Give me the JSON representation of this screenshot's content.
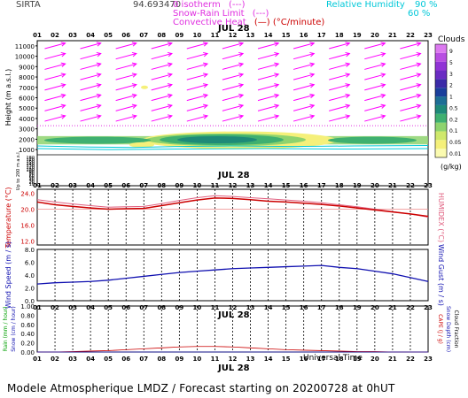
{
  "header": {
    "station": "SIRTA",
    "coord": "94.693470",
    "legend_left": [
      {
        "label": "0 isotherm",
        "marker": "(---)",
        "color": "#e030e0"
      },
      {
        "label": "Snow-Rain Limit",
        "marker": "(---)",
        "color": "#e030e0"
      },
      {
        "label": "Convective Heat",
        "marker": "(—) (°C/minute)",
        "color": "#cc0000"
      }
    ],
    "legend_right": [
      {
        "label": "Relative Humidity",
        "value": "90 %",
        "color": "#00c8d8"
      },
      {
        "label": "",
        "value": "60 %",
        "color": "#00c8d8"
      }
    ],
    "date_label": "JUL 28"
  },
  "colors": {
    "text_magenta": "#e030e0",
    "wind_arrow": "#ff00ff",
    "temp_line": "#cc0000",
    "humidex_line": "#e06080",
    "wind_line": "#1010b0",
    "rain_line": "#1010b0",
    "cape_line": "#cc0000",
    "cloud_scale": [
      "#fbfbb0",
      "#f5f07a",
      "#cfe86b",
      "#8ed36e",
      "#3fb070",
      "#1e8a78",
      "#1d6e95",
      "#1a3f9c",
      "#3b2ba8",
      "#6a2cc3",
      "#9133d6",
      "#b84ee2",
      "#dc7af0"
    ]
  },
  "hours": [
    "01",
    "02",
    "03",
    "04",
    "05",
    "06",
    "07",
    "08",
    "09",
    "10",
    "11",
    "12",
    "13",
    "14",
    "15",
    "16",
    "17",
    "18",
    "19",
    "20",
    "21",
    "22",
    "23"
  ],
  "panels": {
    "height": {
      "ylabel": "Height (m a.s.l.)",
      "yticks_upper": [
        "11000",
        "10000",
        "9000",
        "8000",
        "7000",
        "6000",
        "5000",
        "4000",
        "3000",
        "2000",
        "1000"
      ],
      "yticks_lower": [
        "180",
        "170",
        "160",
        "150",
        "140",
        "130",
        "120",
        "110",
        "100",
        "90",
        "80",
        "70",
        "60",
        "50",
        "40",
        "30",
        "20",
        "10"
      ],
      "lower_label": "Up to 200 m a.s.l.",
      "cloud_title": "Clouds",
      "cloud_ticks": [
        "9",
        "5",
        "3",
        "2",
        "1",
        "0.5",
        "0.2",
        "0.1",
        "0.05",
        "0.01"
      ],
      "cloud_unit": "(g/kg)"
    },
    "temperature": {
      "ylabel": "Temperature (°C)",
      "ylabel_right": "HUMIDEX (°C)",
      "yticks": [
        "24.0",
        "20.0",
        "16.0",
        "12.0"
      ]
    },
    "wind": {
      "ylabel": "Wind Speed (m / s)",
      "ylabel_right": "Wind Gust (m / s)",
      "yticks": [
        "8.0",
        "6.0",
        "4.0",
        "2.0",
        "0.0"
      ]
    },
    "rain": {
      "ylabel_left": [
        "Rain (mm / hour)",
        "Snow (cm / hour)"
      ],
      "ylabel_right": [
        "CAPE (J / g)",
        "Snow Depth (cm)",
        "Cloud Fraction"
      ],
      "yticks": [
        "1.00",
        "0.80",
        "0.60",
        "0.40",
        "0.20",
        "0.00"
      ]
    }
  },
  "chart_data": {
    "type": "line",
    "x": [
      "01",
      "02",
      "03",
      "04",
      "05",
      "06",
      "07",
      "08",
      "09",
      "10",
      "11",
      "12",
      "13",
      "14",
      "15",
      "16",
      "17",
      "18",
      "19",
      "20",
      "21",
      "22",
      "23"
    ],
    "series": [
      {
        "name": "Temperature",
        "values": [
          21.8,
          21.1,
          20.7,
          20.3,
          20.0,
          20.1,
          20.2,
          20.9,
          21.6,
          22.3,
          22.8,
          22.7,
          22.4,
          22.0,
          21.8,
          21.5,
          21.2,
          20.8,
          20.3,
          19.8,
          19.3,
          18.8,
          18.2
        ]
      },
      {
        "name": "HUMIDEX",
        "values": [
          22.4,
          21.8,
          21.3,
          20.9,
          20.5,
          20.6,
          20.7,
          21.4,
          22.2,
          22.9,
          23.4,
          23.2,
          22.9,
          22.6,
          22.3,
          22.0,
          21.6,
          21.1,
          20.6,
          20.0,
          19.4,
          18.8,
          18.0
        ]
      },
      {
        "name": "Wind Speed",
        "values": [
          2.6,
          2.8,
          2.9,
          3.0,
          3.2,
          3.5,
          3.8,
          4.1,
          4.4,
          4.6,
          4.8,
          5.0,
          5.1,
          5.2,
          5.3,
          5.4,
          5.5,
          5.2,
          5.0,
          4.6,
          4.2,
          3.6,
          3.0
        ]
      },
      {
        "name": "Rain",
        "values": [
          0.0,
          0.0,
          0.0,
          0.0,
          0.0,
          0.0,
          0.0,
          0.0,
          0.0,
          0.0,
          0.0,
          0.0,
          0.0,
          0.0,
          0.0,
          0.0,
          0.0,
          0.0,
          0.0,
          0.0,
          0.0,
          0.0,
          0.0
        ]
      },
      {
        "name": "CAPE",
        "values": [
          0.0,
          0.0,
          0.01,
          0.02,
          0.03,
          0.05,
          0.07,
          0.09,
          0.11,
          0.12,
          0.12,
          0.11,
          0.09,
          0.07,
          0.05,
          0.04,
          0.03,
          0.02,
          0.01,
          0.01,
          0.0,
          0.0,
          0.0
        ]
      }
    ],
    "wind_arrows": {
      "rows_m": [
        11000,
        10000,
        9000,
        8000,
        7000,
        6000,
        5000,
        4000
      ],
      "direction_deg": 75
    },
    "temperature_ylim": [
      11.0,
      25.0
    ],
    "wind_ylim": [
      0.0,
      8.0
    ],
    "rain_ylim": [
      0.0,
      1.0
    ],
    "grid": true
  },
  "footer": {
    "xlabel": "Universal Time",
    "caption": "Modele Atmospherique LMDZ / Forecast starting on 20200728 at 0hUT"
  }
}
